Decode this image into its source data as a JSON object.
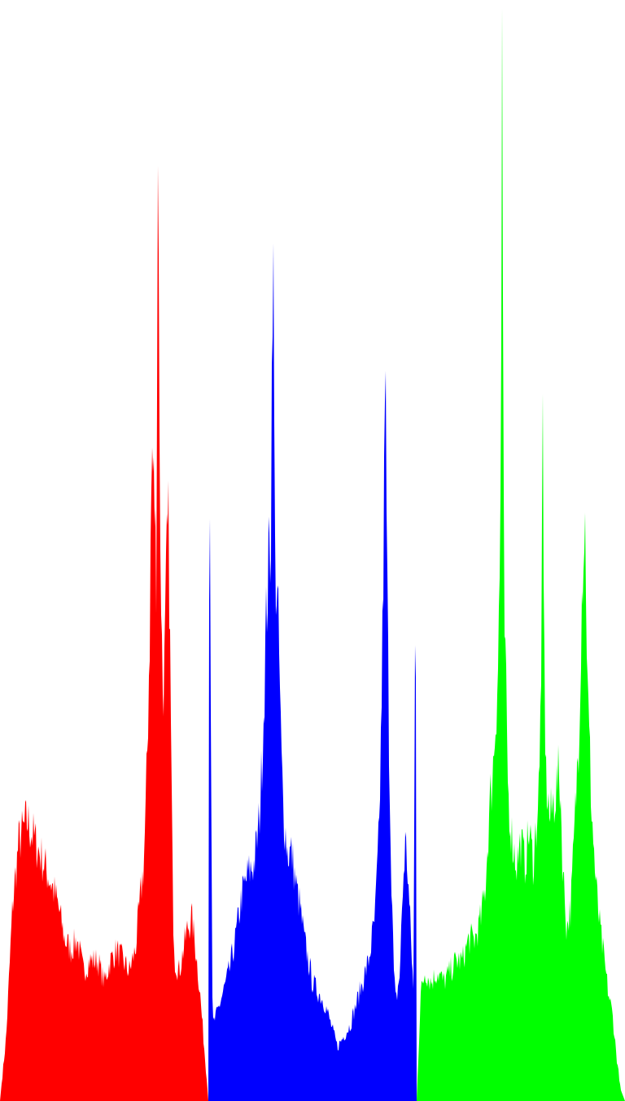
{
  "chart_data": {
    "type": "area",
    "title": "",
    "xlabel": "",
    "ylabel": "",
    "grid": false,
    "legend": "none",
    "ylim": [
      0,
      1.0
    ],
    "x": [
      0,
      0.1,
      0.2,
      0.3,
      0.4,
      0.5,
      0.6,
      0.7,
      0.8,
      0.9,
      1.0
    ],
    "series": [
      {
        "color": "#ff0000",
        "anchors": [
          [
            0.0,
            0.0
          ],
          [
            0.03,
            0.06
          ],
          [
            0.06,
            0.18
          ],
          [
            0.09,
            0.24
          ],
          [
            0.13,
            0.26
          ],
          [
            0.17,
            0.24
          ],
          [
            0.21,
            0.22
          ],
          [
            0.25,
            0.2
          ],
          [
            0.28,
            0.18
          ],
          [
            0.31,
            0.15
          ],
          [
            0.34,
            0.14
          ],
          [
            0.37,
            0.15
          ],
          [
            0.4,
            0.12
          ],
          [
            0.43,
            0.13
          ],
          [
            0.47,
            0.13
          ],
          [
            0.5,
            0.11
          ],
          [
            0.53,
            0.13
          ],
          [
            0.56,
            0.14
          ],
          [
            0.59,
            0.13
          ],
          [
            0.62,
            0.12
          ],
          [
            0.65,
            0.14
          ],
          [
            0.67,
            0.18
          ],
          [
            0.69,
            0.22
          ],
          [
            0.7,
            0.27
          ],
          [
            0.71,
            0.35
          ],
          [
            0.72,
            0.45
          ],
          [
            0.725,
            0.55
          ],
          [
            0.73,
            0.6
          ],
          [
            0.74,
            0.56
          ],
          [
            0.75,
            0.5
          ],
          [
            0.76,
            0.96
          ],
          [
            0.765,
            0.6
          ],
          [
            0.78,
            0.38
          ],
          [
            0.79,
            0.4
          ],
          [
            0.8,
            0.5
          ],
          [
            0.81,
            0.53
          ],
          [
            0.82,
            0.35
          ],
          [
            0.83,
            0.18
          ],
          [
            0.84,
            0.13
          ],
          [
            0.86,
            0.12
          ],
          [
            0.88,
            0.14
          ],
          [
            0.9,
            0.16
          ],
          [
            0.92,
            0.17
          ],
          [
            0.94,
            0.14
          ],
          [
            0.96,
            0.1
          ],
          [
            0.98,
            0.05
          ],
          [
            1.0,
            0.0
          ]
        ]
      },
      {
        "color": "#0000ff",
        "anchors": [
          [
            0.0,
            0.0
          ],
          [
            0.005,
            0.66
          ],
          [
            0.02,
            0.07
          ],
          [
            0.04,
            0.08
          ],
          [
            0.07,
            0.1
          ],
          [
            0.1,
            0.12
          ],
          [
            0.13,
            0.15
          ],
          [
            0.16,
            0.19
          ],
          [
            0.19,
            0.21
          ],
          [
            0.22,
            0.22
          ],
          [
            0.24,
            0.25
          ],
          [
            0.25,
            0.28
          ],
          [
            0.26,
            0.33
          ],
          [
            0.27,
            0.39
          ],
          [
            0.28,
            0.46
          ],
          [
            0.29,
            0.5
          ],
          [
            0.3,
            0.52
          ],
          [
            0.31,
            0.83
          ],
          [
            0.32,
            0.5
          ],
          [
            0.33,
            0.47
          ],
          [
            0.34,
            0.41
          ],
          [
            0.35,
            0.32
          ],
          [
            0.36,
            0.27
          ],
          [
            0.38,
            0.23
          ],
          [
            0.4,
            0.23
          ],
          [
            0.42,
            0.2
          ],
          [
            0.44,
            0.18
          ],
          [
            0.46,
            0.15
          ],
          [
            0.48,
            0.13
          ],
          [
            0.5,
            0.11
          ],
          [
            0.53,
            0.1
          ],
          [
            0.56,
            0.09
          ],
          [
            0.59,
            0.07
          ],
          [
            0.62,
            0.05
          ],
          [
            0.65,
            0.06
          ],
          [
            0.68,
            0.07
          ],
          [
            0.71,
            0.09
          ],
          [
            0.74,
            0.11
          ],
          [
            0.77,
            0.13
          ],
          [
            0.8,
            0.17
          ],
          [
            0.82,
            0.25
          ],
          [
            0.83,
            0.35
          ],
          [
            0.84,
            0.49
          ],
          [
            0.85,
            0.67
          ],
          [
            0.86,
            0.45
          ],
          [
            0.87,
            0.3
          ],
          [
            0.88,
            0.2
          ],
          [
            0.89,
            0.12
          ],
          [
            0.9,
            0.09
          ],
          [
            0.92,
            0.12
          ],
          [
            0.93,
            0.18
          ],
          [
            0.945,
            0.24
          ],
          [
            0.955,
            0.22
          ],
          [
            0.97,
            0.16
          ],
          [
            0.985,
            0.1
          ],
          [
            0.995,
            0.54
          ],
          [
            1.0,
            0.0
          ]
        ]
      },
      {
        "color": "#00ff00",
        "anchors": [
          [
            0.0,
            0.0
          ],
          [
            0.02,
            0.1
          ],
          [
            0.04,
            0.12
          ],
          [
            0.07,
            0.11
          ],
          [
            0.1,
            0.12
          ],
          [
            0.13,
            0.11
          ],
          [
            0.16,
            0.12
          ],
          [
            0.19,
            0.13
          ],
          [
            0.22,
            0.13
          ],
          [
            0.25,
            0.15
          ],
          [
            0.28,
            0.15
          ],
          [
            0.31,
            0.17
          ],
          [
            0.33,
            0.2
          ],
          [
            0.35,
            0.27
          ],
          [
            0.37,
            0.32
          ],
          [
            0.38,
            0.36
          ],
          [
            0.39,
            0.4
          ],
          [
            0.4,
            0.5
          ],
          [
            0.405,
            0.62
          ],
          [
            0.41,
            1.0
          ],
          [
            0.415,
            0.62
          ],
          [
            0.42,
            0.45
          ],
          [
            0.44,
            0.28
          ],
          [
            0.46,
            0.24
          ],
          [
            0.48,
            0.22
          ],
          [
            0.5,
            0.24
          ],
          [
            0.52,
            0.22
          ],
          [
            0.54,
            0.25
          ],
          [
            0.56,
            0.22
          ],
          [
            0.58,
            0.27
          ],
          [
            0.59,
            0.3
          ],
          [
            0.6,
            0.45
          ],
          [
            0.605,
            0.61
          ],
          [
            0.61,
            0.45
          ],
          [
            0.62,
            0.3
          ],
          [
            0.64,
            0.26
          ],
          [
            0.66,
            0.28
          ],
          [
            0.68,
            0.3
          ],
          [
            0.69,
            0.29
          ],
          [
            0.7,
            0.22
          ],
          [
            0.72,
            0.16
          ],
          [
            0.74,
            0.18
          ],
          [
            0.76,
            0.26
          ],
          [
            0.78,
            0.35
          ],
          [
            0.79,
            0.45
          ],
          [
            0.8,
            0.52
          ],
          [
            0.81,
            0.53
          ],
          [
            0.82,
            0.38
          ],
          [
            0.84,
            0.27
          ],
          [
            0.86,
            0.2
          ],
          [
            0.88,
            0.16
          ],
          [
            0.9,
            0.13
          ],
          [
            0.92,
            0.1
          ],
          [
            0.94,
            0.08
          ],
          [
            0.96,
            0.04
          ],
          [
            0.98,
            0.01
          ],
          [
            1.0,
            0.0
          ]
        ]
      }
    ]
  }
}
